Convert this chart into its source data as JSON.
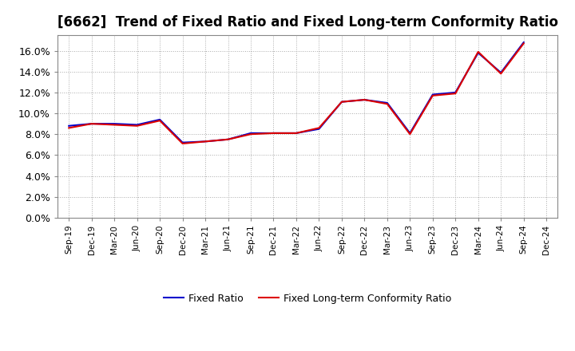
{
  "title": "[6662]  Trend of Fixed Ratio and Fixed Long-term Conformity Ratio",
  "title_fontsize": 12,
  "background_color": "#ffffff",
  "plot_bg_color": "#ffffff",
  "grid_color": "#aaaaaa",
  "x_labels": [
    "Sep-19",
    "Dec-19",
    "Mar-20",
    "Jun-20",
    "Sep-20",
    "Dec-20",
    "Mar-21",
    "Jun-21",
    "Sep-21",
    "Dec-21",
    "Mar-22",
    "Jun-22",
    "Sep-22",
    "Dec-22",
    "Mar-23",
    "Jun-23",
    "Sep-23",
    "Dec-23",
    "Mar-24",
    "Jun-24",
    "Sep-24",
    "Dec-24"
  ],
  "fixed_ratio": [
    8.8,
    9.0,
    9.0,
    8.9,
    9.4,
    7.2,
    7.3,
    7.5,
    8.1,
    8.1,
    8.1,
    8.5,
    11.1,
    11.3,
    11.0,
    8.1,
    11.8,
    12.0,
    15.8,
    13.9,
    16.8,
    null
  ],
  "fixed_lt_ratio": [
    8.6,
    9.0,
    8.9,
    8.8,
    9.3,
    7.1,
    7.3,
    7.5,
    8.0,
    8.1,
    8.1,
    8.6,
    11.1,
    11.3,
    10.9,
    8.0,
    11.7,
    11.9,
    15.9,
    13.8,
    16.7,
    null
  ],
  "fixed_ratio_color": "#0000cc",
  "fixed_lt_ratio_color": "#dd0000",
  "ylim": [
    0,
    17.5
  ],
  "yticks": [
    0,
    2,
    4,
    6,
    8,
    10,
    12,
    14,
    16
  ],
  "ytick_labels": [
    "0.0%",
    "2.0%",
    "4.0%",
    "6.0%",
    "8.0%",
    "10.0%",
    "12.0%",
    "14.0%",
    "16.0%"
  ],
  "line_width": 1.5,
  "legend_fixed_ratio": "Fixed Ratio",
  "legend_fixed_lt_ratio": "Fixed Long-term Conformity Ratio"
}
